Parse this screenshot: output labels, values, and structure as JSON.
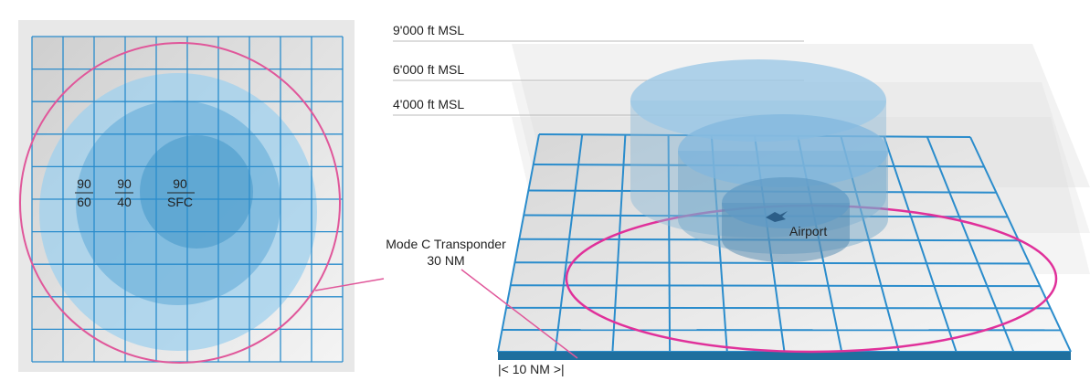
{
  "altitudes": [
    "9'000 ft MSL",
    "6'000 ft MSL",
    "4'000 ft MSL"
  ],
  "plan_labels": [
    {
      "top": "90",
      "bottom": "60"
    },
    {
      "top": "90",
      "bottom": "40"
    },
    {
      "top": "90",
      "bottom": "SFC"
    }
  ],
  "callout": {
    "line1": "Mode C Transponder",
    "line2": "30 NM"
  },
  "airport": "Airport",
  "scale": "|< 10 NM >|"
}
